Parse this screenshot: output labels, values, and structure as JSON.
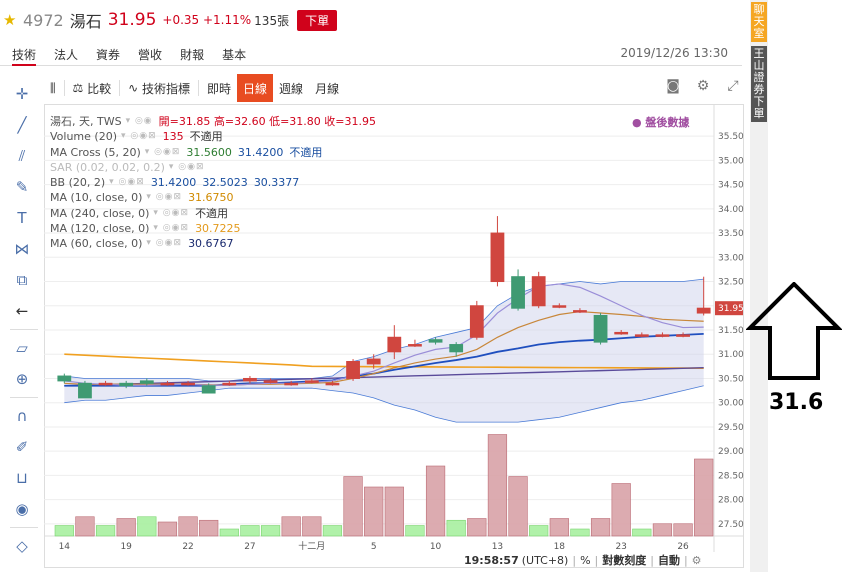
{
  "header": {
    "code": "4972",
    "name": "湯石",
    "price": "31.95",
    "change": "+0.35 +1.11%",
    "volume": "135張",
    "order_button": "下單"
  },
  "tabs": [
    "技術",
    "法人",
    "資券",
    "營收",
    "財報",
    "基本"
  ],
  "datetime": "2019/12/26 13:30",
  "toolbar": {
    "compare": "比較",
    "indicators": "技術指標",
    "intraday": "即時",
    "daily": "日線",
    "weekly": "週線",
    "monthly": "月線"
  },
  "legend": {
    "symbol": "湯石, 天, TWS",
    "ohlc": "開=31.85 高=32.60 低=31.80 收=31.95",
    "rows": [
      {
        "name": "Volume (20)",
        "values": [
          {
            "v": "135",
            "c": "#d0021b"
          },
          {
            "v": "不適用",
            "c": "#333"
          }
        ]
      },
      {
        "name": "MA Cross (5, 20)",
        "values": [
          {
            "v": "31.5600",
            "c": "#2e7d32"
          },
          {
            "v": "31.4200",
            "c": "#1a4fa0"
          },
          {
            "v": "不適用",
            "c": "#1a4fa0"
          }
        ]
      },
      {
        "name": "SAR (0.02, 0.02, 0.2)",
        "values": []
      },
      {
        "name": "BB (20, 2)",
        "values": [
          {
            "v": "31.4200",
            "c": "#1a4fa0"
          },
          {
            "v": "32.5023",
            "c": "#1a4fa0"
          },
          {
            "v": "30.3377",
            "c": "#1a4fa0"
          }
        ]
      },
      {
        "name": "MA (10, close, 0)",
        "values": [
          {
            "v": "31.6750",
            "c": "#d08a00"
          }
        ]
      },
      {
        "name": "MA (240, close, 0)",
        "values": [
          {
            "v": "不適用",
            "c": "#333"
          }
        ]
      },
      {
        "name": "MA (120, close, 0)",
        "values": [
          {
            "v": "30.7225",
            "c": "#e39a1c"
          }
        ]
      },
      {
        "name": "MA (60, close, 0)",
        "values": [
          {
            "v": "30.6767",
            "c": "#1a2a6e"
          }
        ]
      }
    ],
    "after_hours": "● 盤後數據"
  },
  "chart_data": {
    "type": "candlestick",
    "price_axis": [
      "35.50",
      "35.00",
      "34.50",
      "34.00",
      "33.50",
      "33.00",
      "32.50",
      "32.00",
      "31.50",
      "31.00",
      "30.50",
      "30.00",
      "29.50",
      "29.00",
      "28.50",
      "28.00",
      "27.50"
    ],
    "last_price_label": "31.95",
    "x_labels": [
      "14",
      "19",
      "22",
      "27",
      "十二月",
      "5",
      "10",
      "13",
      "18",
      "23",
      "26"
    ],
    "candles": [
      {
        "o": 30.55,
        "c": 30.45,
        "h": 30.6,
        "l": 30.4
      },
      {
        "o": 30.4,
        "c": 30.1,
        "h": 30.45,
        "l": 30.1
      },
      {
        "o": 30.4,
        "c": 30.4,
        "h": 30.45,
        "l": 30.35
      },
      {
        "o": 30.4,
        "c": 30.35,
        "h": 30.45,
        "l": 30.3
      },
      {
        "o": 30.45,
        "c": 30.4,
        "h": 30.5,
        "l": 30.35
      },
      {
        "o": 30.4,
        "c": 30.4,
        "h": 30.45,
        "l": 30.35
      },
      {
        "o": 30.4,
        "c": 30.4,
        "h": 30.45,
        "l": 30.35
      },
      {
        "o": 30.35,
        "c": 30.2,
        "h": 30.4,
        "l": 30.2
      },
      {
        "o": 30.4,
        "c": 30.4,
        "h": 30.45,
        "l": 30.35
      },
      {
        "o": 30.45,
        "c": 30.5,
        "h": 30.55,
        "l": 30.4
      },
      {
        "o": 30.45,
        "c": 30.45,
        "h": 30.5,
        "l": 30.4
      },
      {
        "o": 30.4,
        "c": 30.4,
        "h": 30.45,
        "l": 30.35
      },
      {
        "o": 30.45,
        "c": 30.45,
        "h": 30.5,
        "l": 30.4
      },
      {
        "o": 30.4,
        "c": 30.4,
        "h": 30.45,
        "l": 30.35
      },
      {
        "o": 30.5,
        "c": 30.85,
        "h": 30.9,
        "l": 30.45
      },
      {
        "o": 30.8,
        "c": 30.9,
        "h": 31.0,
        "l": 30.7
      },
      {
        "o": 31.05,
        "c": 31.35,
        "h": 31.6,
        "l": 30.9
      },
      {
        "o": 31.2,
        "c": 31.2,
        "h": 31.3,
        "l": 31.15
      },
      {
        "o": 31.3,
        "c": 31.25,
        "h": 31.35,
        "l": 31.2
      },
      {
        "o": 31.2,
        "c": 31.05,
        "h": 31.25,
        "l": 30.95
      },
      {
        "o": 31.35,
        "c": 32.0,
        "h": 32.1,
        "l": 31.3
      },
      {
        "o": 32.5,
        "c": 33.5,
        "h": 33.85,
        "l": 32.4
      },
      {
        "o": 32.6,
        "c": 31.95,
        "h": 32.75,
        "l": 31.9
      },
      {
        "o": 32.0,
        "c": 32.6,
        "h": 32.7,
        "l": 31.95
      },
      {
        "o": 32.0,
        "c": 32.0,
        "h": 32.05,
        "l": 31.95
      },
      {
        "o": 31.9,
        "c": 31.9,
        "h": 31.95,
        "l": 31.85
      },
      {
        "o": 31.8,
        "c": 31.25,
        "h": 31.85,
        "l": 31.2
      },
      {
        "o": 31.45,
        "c": 31.45,
        "h": 31.5,
        "l": 31.4
      },
      {
        "o": 31.4,
        "c": 31.4,
        "h": 31.45,
        "l": 31.35
      },
      {
        "o": 31.4,
        "c": 31.4,
        "h": 31.45,
        "l": 31.35
      },
      {
        "o": 31.4,
        "c": 31.4,
        "h": 31.45,
        "l": 31.35
      },
      {
        "o": 31.85,
        "c": 31.95,
        "h": 32.6,
        "l": 31.8
      }
    ],
    "volumes": [
      0.3,
      0.55,
      0.3,
      0.5,
      0.55,
      0.4,
      0.55,
      0.45,
      0.2,
      0.3,
      0.3,
      0.55,
      0.55,
      0.3,
      1.7,
      1.4,
      1.4,
      0.3,
      2.0,
      0.45,
      0.5,
      2.9,
      1.7,
      0.3,
      0.5,
      0.2,
      0.5,
      1.5,
      0.2,
      0.35,
      0.35,
      2.2
    ],
    "volume_up": [
      false,
      true,
      false,
      true,
      false,
      true,
      true,
      true,
      false,
      false,
      false,
      true,
      true,
      false,
      true,
      true,
      true,
      false,
      true,
      false,
      true,
      true,
      true,
      false,
      true,
      false,
      true,
      true,
      false,
      true,
      true,
      true
    ]
  },
  "bottom_bar": {
    "time": "19:58:57",
    "tz": "(UTC+8)",
    "percent": "%",
    "log": "對數刻度",
    "auto": "自動"
  },
  "side": {
    "chat": "聊天室",
    "broker": "王山證券下單"
  },
  "annotation": {
    "value": "31.6"
  }
}
